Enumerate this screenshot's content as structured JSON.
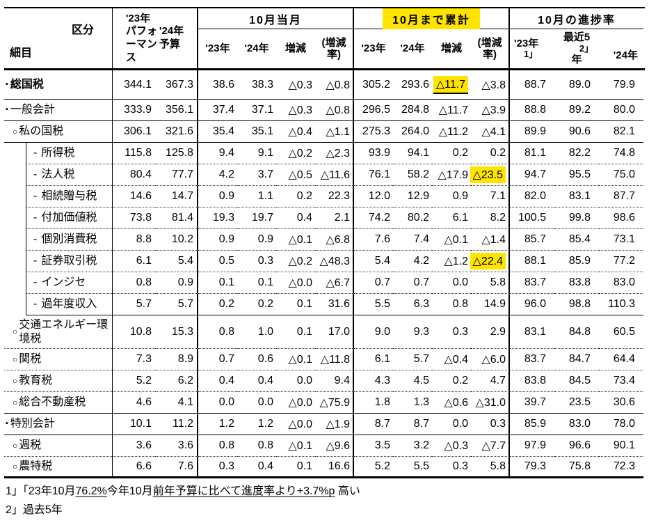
{
  "table": {
    "highlight_color": "#ffe400",
    "corner": {
      "top_right": "区分",
      "bottom_left": "細目"
    },
    "perf_col": "'23年\nパフォ\nーマン\nス",
    "budget_col": "'24年\n予算",
    "group_oct": {
      "label": "10月当月",
      "sub": [
        "'23年",
        "'24年",
        "増減",
        "(増減\n率)"
      ]
    },
    "group_cum": {
      "label": "10月まで累計",
      "sub": [
        "'23年",
        "'24年",
        "増減",
        "(増減\n率)"
      ]
    },
    "group_prog": {
      "label": "10月の進捗率",
      "sub_y23": "'23年",
      "sub_y23_marker": "1」",
      "sub_recent": "最近5",
      "sub_recent_marker": "2」",
      "sub_recent_tail": "年",
      "sub_y24": "'24年"
    }
  },
  "rows": [
    {
      "label": "総国税",
      "bullet": "▪",
      "level": 0,
      "bold": true,
      "sep": "solid",
      "tall": false,
      "perf": "344.1",
      "budget": "367.3",
      "oct": [
        "38.6",
        "38.3",
        "△0.3",
        "△0.8"
      ],
      "cum": [
        "305.2",
        "293.6",
        "△11.7",
        "△3.8"
      ],
      "prog": [
        "88.7",
        "89.0",
        "79.9"
      ],
      "marks": {
        "cum_2": "hl-ul"
      }
    },
    {
      "label": "一般会計",
      "bullet": "▪",
      "level": 0,
      "bold": false,
      "sep": "solid",
      "tall": false,
      "perf": "333.9",
      "budget": "356.1",
      "oct": [
        "37.4",
        "37.1",
        "△0.3",
        "△0.8"
      ],
      "cum": [
        "296.5",
        "284.8",
        "△11.7",
        "△3.9"
      ],
      "prog": [
        "88.8",
        "89.2",
        "80.0"
      ],
      "marks": {}
    },
    {
      "label": "私の国税",
      "bullet": "○",
      "level": 1,
      "bold": false,
      "sep": "solid",
      "tall": false,
      "perf": "306.1",
      "budget": "321.6",
      "oct": [
        "35.4",
        "35.1",
        "△0.4",
        "△1.1"
      ],
      "cum": [
        "275.3",
        "264.0",
        "△11.2",
        "△4.1"
      ],
      "prog": [
        "89.9",
        "90.6",
        "82.1"
      ],
      "marks": {}
    },
    {
      "label": "所得税",
      "bullet": "-",
      "level": 2,
      "bold": false,
      "sep": "dotted",
      "tall": false,
      "perf": "115.8",
      "budget": "125.8",
      "oct": [
        "9.4",
        "9.1",
        "△0.2",
        "△2.3"
      ],
      "cum": [
        "93.9",
        "94.1",
        "0.2",
        "0.2"
      ],
      "prog": [
        "81.1",
        "82.2",
        "74.8"
      ],
      "marks": {}
    },
    {
      "label": "法人税",
      "bullet": "-",
      "level": 2,
      "bold": false,
      "sep": "dotted",
      "tall": false,
      "perf": "80.4",
      "budget": "77.7",
      "oct": [
        "4.2",
        "3.7",
        "△0.5",
        "△11.6"
      ],
      "cum": [
        "76.1",
        "58.2",
        "△17.9",
        "△23.5"
      ],
      "prog": [
        "94.7",
        "95.5",
        "75.0"
      ],
      "marks": {
        "cum_3": "hl"
      }
    },
    {
      "label": "相続贈与税",
      "bullet": "-",
      "level": 2,
      "bold": false,
      "sep": "dotted",
      "tall": false,
      "perf": "14.6",
      "budget": "14.7",
      "oct": [
        "0.9",
        "1.1",
        "0.2",
        "22.3"
      ],
      "cum": [
        "12.0",
        "12.9",
        "0.9",
        "7.1"
      ],
      "prog": [
        "82.0",
        "83.1",
        "87.7"
      ],
      "marks": {}
    },
    {
      "label": "付加価値税",
      "bullet": "-",
      "level": 2,
      "bold": false,
      "sep": "dotted",
      "tall": false,
      "perf": "73.8",
      "budget": "81.4",
      "oct": [
        "19.3",
        "19.7",
        "0.4",
        "2.1"
      ],
      "cum": [
        "74.2",
        "80.2",
        "6.1",
        "8.2"
      ],
      "prog": [
        "100.5",
        "99.8",
        "98.6"
      ],
      "marks": {}
    },
    {
      "label": "個別消費税",
      "bullet": "-",
      "level": 2,
      "bold": false,
      "sep": "dotted",
      "tall": false,
      "perf": "8.8",
      "budget": "10.2",
      "oct": [
        "0.9",
        "0.9",
        "△0.1",
        "△6.8"
      ],
      "cum": [
        "7.6",
        "7.4",
        "△0.1",
        "△1.4"
      ],
      "prog": [
        "85.7",
        "85.4",
        "73.1"
      ],
      "marks": {}
    },
    {
      "label": "証券取引税",
      "bullet": "-",
      "level": 2,
      "bold": false,
      "sep": "dotted",
      "tall": false,
      "perf": "6.1",
      "budget": "5.4",
      "oct": [
        "0.5",
        "0.3",
        "△0.2",
        "△48.3"
      ],
      "cum": [
        "5.4",
        "4.2",
        "△1.2",
        "△22.4"
      ],
      "prog": [
        "88.1",
        "85.9",
        "77.2"
      ],
      "marks": {
        "cum_3": "hl"
      }
    },
    {
      "label": "インジセ",
      "bullet": "-",
      "level": 2,
      "bold": false,
      "sep": "dotted",
      "tall": false,
      "perf": "0.8",
      "budget": "0.9",
      "oct": [
        "0.1",
        "0.1",
        "△0.0",
        "△6.7"
      ],
      "cum": [
        "0.7",
        "0.7",
        "0.0",
        "5.8"
      ],
      "prog": [
        "83.7",
        "83.8",
        "83.0"
      ],
      "marks": {}
    },
    {
      "label": "過年度収入",
      "bullet": "-",
      "level": 2,
      "bold": false,
      "sep": "solid",
      "tall": false,
      "perf": "5.7",
      "budget": "5.7",
      "oct": [
        "0.2",
        "0.2",
        "0.1",
        "31.6"
      ],
      "cum": [
        "5.5",
        "6.3",
        "0.8",
        "14.9"
      ],
      "prog": [
        "96.0",
        "98.8",
        "110.3"
      ],
      "marks": {}
    },
    {
      "label": "交通エネルギー環境税",
      "bullet": "○",
      "level": 1,
      "bold": false,
      "sep": "dotted",
      "tall": true,
      "perf": "10.8",
      "budget": "15.3",
      "oct": [
        "0.8",
        "1.0",
        "0.1",
        "17.0"
      ],
      "cum": [
        "9.0",
        "9.3",
        "0.3",
        "2.9"
      ],
      "prog": [
        "83.1",
        "84.8",
        "60.5"
      ],
      "marks": {}
    },
    {
      "label": "関税",
      "bullet": "○",
      "level": 1,
      "bold": false,
      "sep": "dotted",
      "tall": false,
      "perf": "7.3",
      "budget": "8.9",
      "oct": [
        "0.7",
        "0.6",
        "△0.1",
        "△11.8"
      ],
      "cum": [
        "6.1",
        "5.7",
        "△0.4",
        "△6.0"
      ],
      "prog": [
        "83.7",
        "84.7",
        "64.4"
      ],
      "marks": {}
    },
    {
      "label": "教育税",
      "bullet": "○",
      "level": 1,
      "bold": false,
      "sep": "dotted",
      "tall": false,
      "perf": "5.2",
      "budget": "6.2",
      "oct": [
        "0.4",
        "0.4",
        "0.0",
        "9.4"
      ],
      "cum": [
        "4.3",
        "4.5",
        "0.2",
        "4.7"
      ],
      "prog": [
        "83.8",
        "84.5",
        "73.4"
      ],
      "marks": {}
    },
    {
      "label": "総合不動産税",
      "bullet": "○",
      "level": 1,
      "bold": false,
      "sep": "solid",
      "tall": false,
      "perf": "4.6",
      "budget": "4.1",
      "oct": [
        "0.0",
        "0.0",
        "△0.0",
        "△75.9"
      ],
      "cum": [
        "1.8",
        "1.3",
        "△0.6",
        "△31.0"
      ],
      "prog": [
        "39.7",
        "23.5",
        "30.6"
      ],
      "marks": {}
    },
    {
      "label": "特別会計",
      "bullet": "▪",
      "level": 0,
      "bold": false,
      "sep": "solid",
      "tall": false,
      "perf": "10.1",
      "budget": "11.2",
      "oct": [
        "1.2",
        "1.2",
        "△0.0",
        "△1.9"
      ],
      "cum": [
        "8.7",
        "8.7",
        "0.0",
        "0.3"
      ],
      "prog": [
        "85.9",
        "83.0",
        "78.0"
      ],
      "marks": {}
    },
    {
      "label": "週税",
      "bullet": "○",
      "level": 1,
      "bold": false,
      "sep": "dotted",
      "tall": false,
      "perf": "3.6",
      "budget": "3.6",
      "oct": [
        "0.8",
        "0.8",
        "△0.1",
        "△9.6"
      ],
      "cum": [
        "3.5",
        "3.2",
        "△0.3",
        "△7.7"
      ],
      "prog": [
        "97.9",
        "96.6",
        "90.1"
      ],
      "marks": {}
    },
    {
      "label": "農特税",
      "bullet": "○",
      "level": 1,
      "bold": false,
      "sep": "thick",
      "tall": false,
      "perf": "6.6",
      "budget": "7.6",
      "oct": [
        "0.3",
        "0.4",
        "0.1",
        "16.6"
      ],
      "cum": [
        "5.2",
        "5.5",
        "0.3",
        "5.8"
      ],
      "prog": [
        "79.3",
        "75.8",
        "72.3"
      ],
      "marks": {}
    }
  ],
  "footnotes": {
    "line1": [
      {
        "text": "1」「23年10月",
        "underline": false
      },
      {
        "text": "76.2%",
        "underline": true
      },
      {
        "text": "今年10月",
        "underline": false
      },
      {
        "text": "前年予算に比べて進度率より+3.7%p",
        "underline": true
      },
      {
        "text": " 高い",
        "underline": false
      }
    ],
    "line2": "2」過去5年"
  }
}
